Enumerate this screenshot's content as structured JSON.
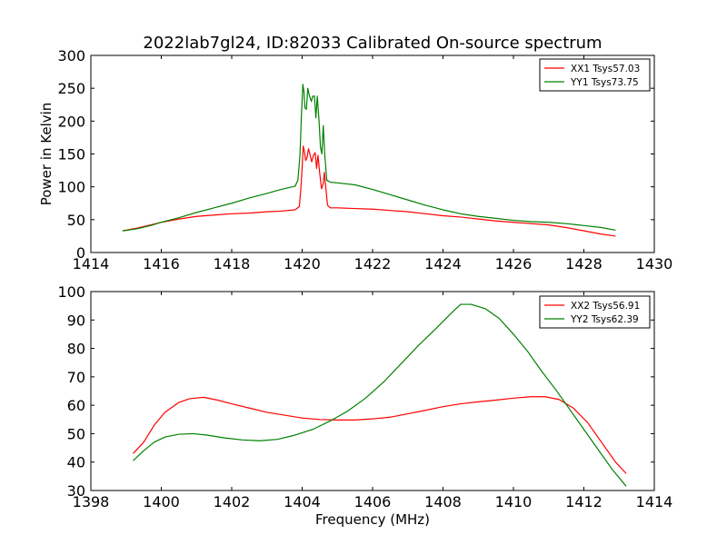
{
  "figure": {
    "title": "2022lab7gl24, ID:82033 Calibrated On-source spectrum"
  },
  "chart_data": [
    {
      "type": "line",
      "title": "2022lab7gl24, ID:82033 Calibrated On-source spectrum",
      "xlabel": "",
      "ylabel": "Power in Kelvin",
      "xlim": [
        1414,
        1430
      ],
      "ylim": [
        0,
        300
      ],
      "xticks": [
        1414,
        1416,
        1418,
        1420,
        1422,
        1424,
        1426,
        1428,
        1430
      ],
      "yticks": [
        0,
        50,
        100,
        150,
        200,
        250,
        300
      ],
      "grid": false,
      "legend_position": "top-right",
      "series": [
        {
          "name": "XX1 Tsys57.03",
          "color": "#ff0000",
          "points": [
            [
              1414.9,
              33
            ],
            [
              1415.3,
              37
            ],
            [
              1415.7,
              42
            ],
            [
              1416.0,
              46
            ],
            [
              1416.5,
              51
            ],
            [
              1417.0,
              55
            ],
            [
              1417.5,
              57
            ],
            [
              1418.0,
              59
            ],
            [
              1418.5,
              60
            ],
            [
              1419.0,
              62
            ],
            [
              1419.4,
              63
            ],
            [
              1419.8,
              65
            ],
            [
              1419.92,
              70
            ],
            [
              1419.96,
              95
            ],
            [
              1420.0,
              130
            ],
            [
              1420.03,
              162
            ],
            [
              1420.06,
              155
            ],
            [
              1420.1,
              140
            ],
            [
              1420.14,
              145
            ],
            [
              1420.18,
              158
            ],
            [
              1420.22,
              150
            ],
            [
              1420.27,
              138
            ],
            [
              1420.32,
              148
            ],
            [
              1420.37,
              152
            ],
            [
              1420.41,
              128
            ],
            [
              1420.45,
              148
            ],
            [
              1420.5,
              120
            ],
            [
              1420.55,
              97
            ],
            [
              1420.6,
              105
            ],
            [
              1420.63,
              122
            ],
            [
              1420.67,
              100
            ],
            [
              1420.72,
              72
            ],
            [
              1420.8,
              68
            ],
            [
              1421.0,
              68
            ],
            [
              1421.5,
              67
            ],
            [
              1422.0,
              66
            ],
            [
              1422.5,
              64
            ],
            [
              1423.0,
              62
            ],
            [
              1423.5,
              59
            ],
            [
              1424.0,
              56
            ],
            [
              1424.5,
              54
            ],
            [
              1425.0,
              51
            ],
            [
              1425.5,
              48
            ],
            [
              1426.0,
              46
            ],
            [
              1426.5,
              44
            ],
            [
              1427.0,
              42
            ],
            [
              1427.5,
              38
            ],
            [
              1428.0,
              33
            ],
            [
              1428.5,
              28
            ],
            [
              1428.9,
              25
            ]
          ]
        },
        {
          "name": "YY1 Tsys73.75",
          "color": "#008000",
          "points": [
            [
              1414.9,
              33
            ],
            [
              1415.3,
              36
            ],
            [
              1415.7,
              41
            ],
            [
              1416.0,
              46
            ],
            [
              1416.5,
              53
            ],
            [
              1417.0,
              61
            ],
            [
              1417.5,
              68
            ],
            [
              1418.0,
              75
            ],
            [
              1418.5,
              83
            ],
            [
              1419.0,
              90
            ],
            [
              1419.4,
              96
            ],
            [
              1419.8,
              101
            ],
            [
              1419.88,
              110
            ],
            [
              1419.94,
              150
            ],
            [
              1419.98,
              210
            ],
            [
              1420.02,
              256
            ],
            [
              1420.05,
              245
            ],
            [
              1420.08,
              220
            ],
            [
              1420.12,
              218
            ],
            [
              1420.16,
              250
            ],
            [
              1420.2,
              240
            ],
            [
              1420.26,
              230
            ],
            [
              1420.3,
              238
            ],
            [
              1420.35,
              238
            ],
            [
              1420.39,
              205
            ],
            [
              1420.43,
              238
            ],
            [
              1420.48,
              200
            ],
            [
              1420.52,
              160
            ],
            [
              1420.56,
              150
            ],
            [
              1420.6,
              193
            ],
            [
              1420.64,
              150
            ],
            [
              1420.7,
              110
            ],
            [
              1420.8,
              107
            ],
            [
              1421.0,
              106
            ],
            [
              1421.5,
              103
            ],
            [
              1422.0,
              96
            ],
            [
              1422.5,
              88
            ],
            [
              1423.0,
              80
            ],
            [
              1423.5,
              72
            ],
            [
              1424.0,
              65
            ],
            [
              1424.5,
              59
            ],
            [
              1425.0,
              55
            ],
            [
              1425.5,
              52
            ],
            [
              1426.0,
              49
            ],
            [
              1426.5,
              47
            ],
            [
              1427.0,
              46
            ],
            [
              1427.5,
              44
            ],
            [
              1428.0,
              41
            ],
            [
              1428.5,
              38
            ],
            [
              1428.9,
              34
            ]
          ]
        }
      ]
    },
    {
      "type": "line",
      "title": "",
      "xlabel": "Frequency (MHz)",
      "ylabel": "",
      "xlim": [
        1398,
        1414
      ],
      "ylim": [
        30,
        100
      ],
      "xticks": [
        1398,
        1400,
        1402,
        1404,
        1406,
        1408,
        1410,
        1412,
        1414
      ],
      "yticks": [
        30,
        40,
        50,
        60,
        70,
        80,
        90,
        100
      ],
      "grid": false,
      "legend_position": "top-right",
      "series": [
        {
          "name": "XX2 Tsys56.91",
          "color": "#ff0000",
          "points": [
            [
              1399.2,
              43
            ],
            [
              1399.5,
              47
            ],
            [
              1399.8,
              53
            ],
            [
              1400.1,
              57.5
            ],
            [
              1400.5,
              61
            ],
            [
              1400.8,
              62.3
            ],
            [
              1401.2,
              62.8
            ],
            [
              1401.6,
              61.8
            ],
            [
              1402.0,
              60.5
            ],
            [
              1402.5,
              59
            ],
            [
              1403.0,
              57.5
            ],
            [
              1403.5,
              56.5
            ],
            [
              1404.0,
              55.5
            ],
            [
              1404.5,
              55
            ],
            [
              1405.0,
              54.8
            ],
            [
              1405.5,
              54.8
            ],
            [
              1406.0,
              55.2
            ],
            [
              1406.5,
              55.8
            ],
            [
              1407.0,
              57
            ],
            [
              1407.5,
              58.2
            ],
            [
              1408.0,
              59.5
            ],
            [
              1408.5,
              60.5
            ],
            [
              1409.0,
              61.2
            ],
            [
              1409.5,
              61.8
            ],
            [
              1410.0,
              62.5
            ],
            [
              1410.5,
              63
            ],
            [
              1410.9,
              63
            ],
            [
              1411.3,
              62
            ],
            [
              1411.7,
              59
            ],
            [
              1412.1,
              54
            ],
            [
              1412.5,
              47
            ],
            [
              1412.9,
              40
            ],
            [
              1413.2,
              36
            ]
          ]
        },
        {
          "name": "YY2 Tsys62.39",
          "color": "#008000",
          "points": [
            [
              1399.2,
              40.5
            ],
            [
              1399.5,
              44
            ],
            [
              1399.8,
              47
            ],
            [
              1400.1,
              48.8
            ],
            [
              1400.5,
              49.8
            ],
            [
              1400.9,
              50
            ],
            [
              1401.3,
              49.5
            ],
            [
              1401.8,
              48.5
            ],
            [
              1402.3,
              47.8
            ],
            [
              1402.8,
              47.5
            ],
            [
              1403.3,
              48
            ],
            [
              1403.8,
              49.5
            ],
            [
              1404.3,
              51.5
            ],
            [
              1404.8,
              54.5
            ],
            [
              1405.3,
              58
            ],
            [
              1405.8,
              62.5
            ],
            [
              1406.3,
              68
            ],
            [
              1406.8,
              74.5
            ],
            [
              1407.3,
              81
            ],
            [
              1407.8,
              87
            ],
            [
              1408.2,
              92
            ],
            [
              1408.5,
              95.5
            ],
            [
              1408.8,
              95.5
            ],
            [
              1409.2,
              94
            ],
            [
              1409.6,
              90.5
            ],
            [
              1410.0,
              85
            ],
            [
              1410.4,
              79
            ],
            [
              1410.8,
              72
            ],
            [
              1411.2,
              65.5
            ],
            [
              1411.6,
              58.5
            ],
            [
              1412.0,
              51.5
            ],
            [
              1412.4,
              44.5
            ],
            [
              1412.8,
              37.5
            ],
            [
              1413.2,
              31.5
            ]
          ]
        }
      ]
    }
  ]
}
